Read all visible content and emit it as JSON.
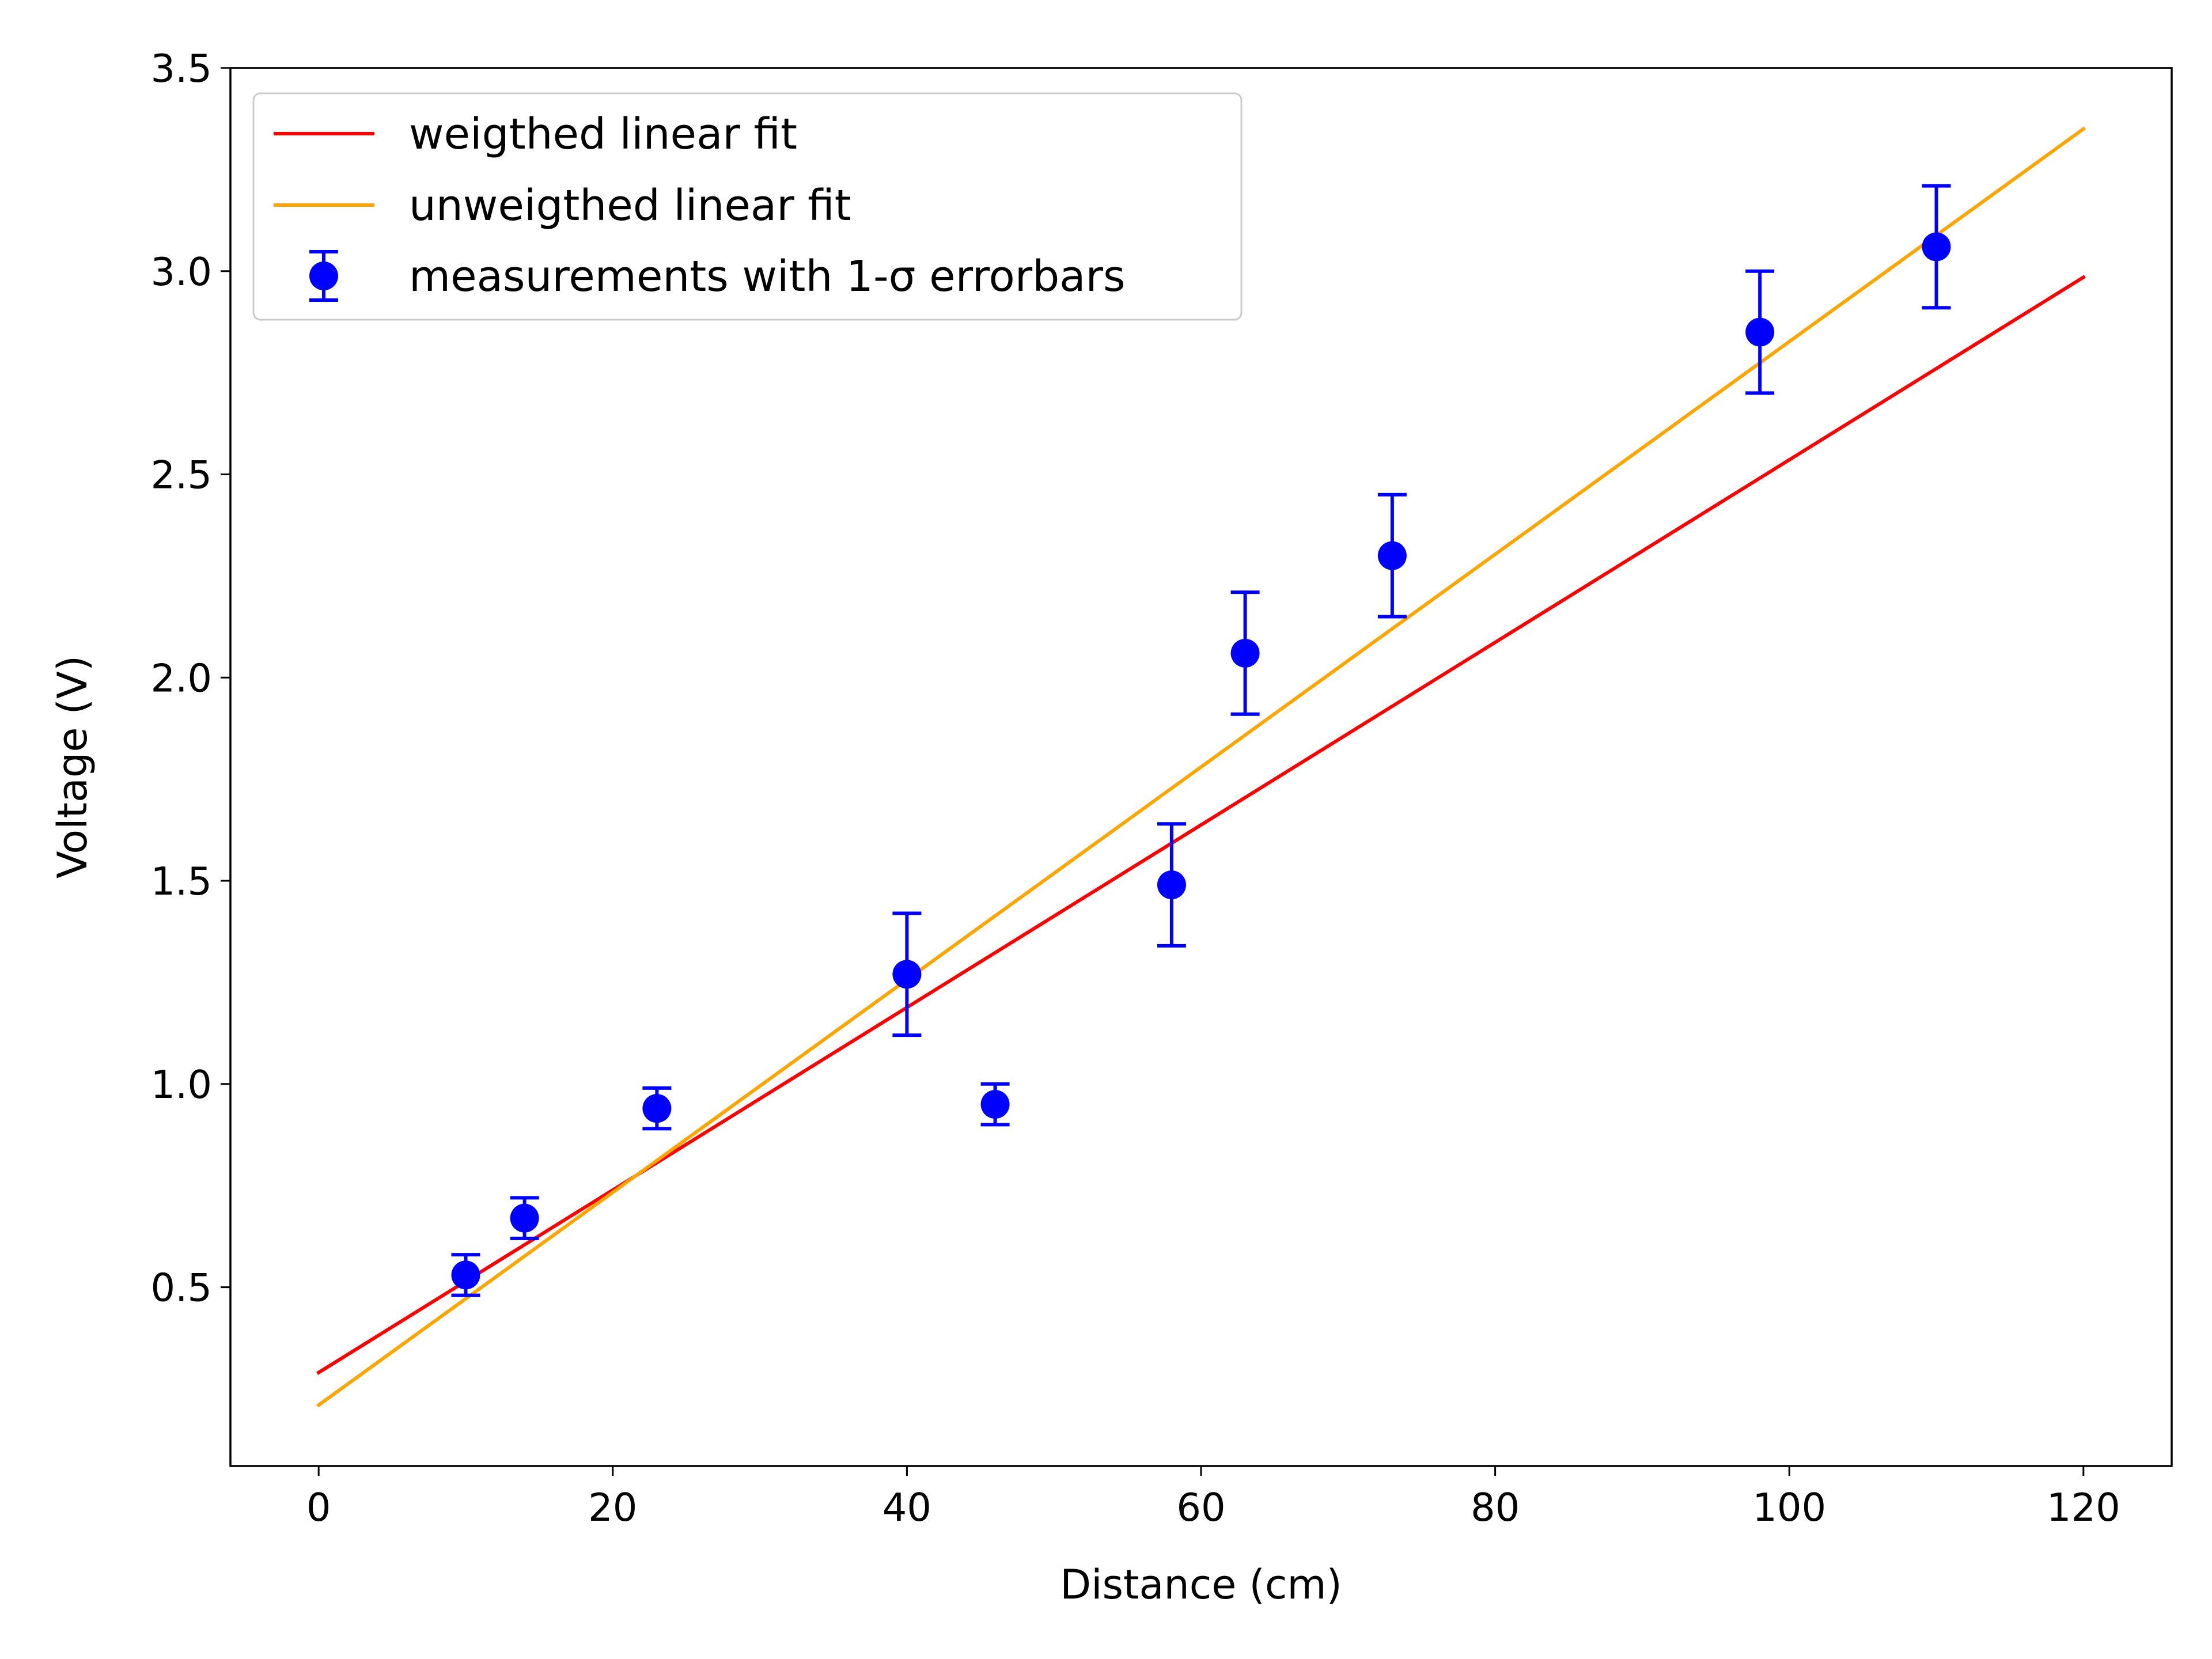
{
  "chart_data": {
    "type": "scatter",
    "title": "",
    "xlabel": "Distance (cm)",
    "ylabel": "Voltage (V)",
    "xlim": [
      -6,
      126
    ],
    "ylim": [
      0.06,
      3.5
    ],
    "xticks": [
      0,
      20,
      40,
      60,
      80,
      100,
      120
    ],
    "xtick_labels": [
      "0",
      "20",
      "40",
      "60",
      "80",
      "100",
      "120"
    ],
    "yticks": [
      0.5,
      1.0,
      1.5,
      2.0,
      2.5,
      3.0,
      3.5
    ],
    "ytick_labels": [
      "0.5",
      "1.0",
      "1.5",
      "2.0",
      "2.5",
      "3.0",
      "3.5"
    ],
    "grid": false,
    "legend_position": "top-left",
    "series": [
      {
        "name": "weigthed linear fit",
        "kind": "line",
        "color": "#ff0000",
        "x": [
          0,
          120
        ],
        "y": [
          0.29,
          2.985
        ]
      },
      {
        "name": "unweigthed linear fit",
        "kind": "line",
        "color": "#ffa500",
        "x": [
          0,
          120
        ],
        "y": [
          0.21,
          3.35
        ]
      },
      {
        "name": "measurements with 1-σ errorbars",
        "kind": "errorbar",
        "color": "#0000ff",
        "x": [
          10,
          14,
          23,
          40,
          46,
          58,
          63,
          73,
          98,
          110
        ],
        "y": [
          0.53,
          0.67,
          0.94,
          1.27,
          0.95,
          1.49,
          2.06,
          2.3,
          2.85,
          3.06
        ],
        "yerr": [
          0.05,
          0.05,
          0.05,
          0.15,
          0.05,
          0.15,
          0.15,
          0.15,
          0.15,
          0.15
        ]
      }
    ]
  }
}
